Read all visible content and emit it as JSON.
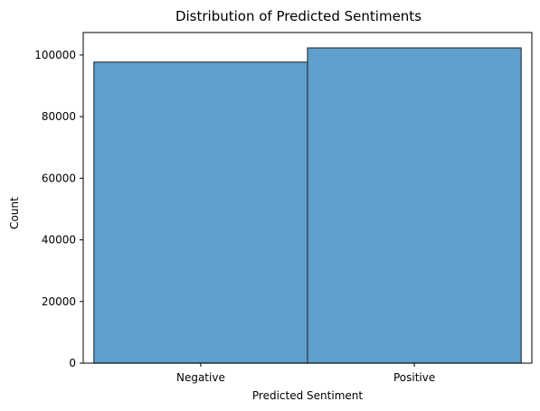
{
  "chart_data": {
    "type": "bar",
    "title": "Distribution of Predicted Sentiments",
    "xlabel": "Predicted Sentiment",
    "ylabel": "Count",
    "categories": [
      "Negative",
      "Positive"
    ],
    "values": [
      97700,
      102300
    ],
    "ylim": [
      0,
      107300
    ],
    "yticks": [
      0,
      20000,
      40000,
      60000,
      80000,
      100000
    ],
    "grid": false,
    "bar_color": "#5f9fcb",
    "bar_edge_color": "#2b3a47"
  }
}
